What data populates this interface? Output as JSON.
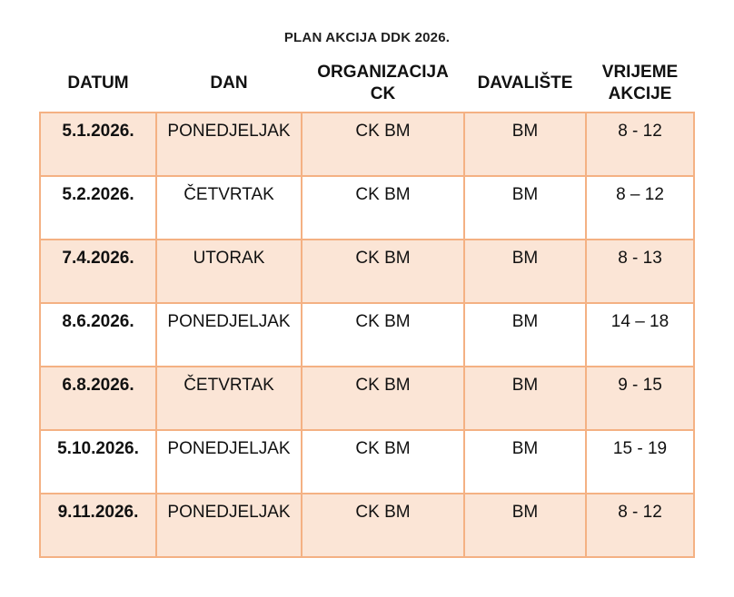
{
  "title": "PLAN AKCIJA DDK 2026.",
  "table": {
    "columns": [
      {
        "id": "datum",
        "label": "DATUM"
      },
      {
        "id": "dan",
        "label": "DAN"
      },
      {
        "id": "organizacija_ck",
        "label": "ORGANIZACIJA CK"
      },
      {
        "id": "davaliste",
        "label": "DAVALIŠTE"
      },
      {
        "id": "vrijeme_akcije",
        "label": "VRIJEME AKCIJE"
      }
    ],
    "rows": [
      {
        "datum": "5.1.2026.",
        "dan": "PONEDJELJAK",
        "organizacija_ck": "CK BM",
        "davaliste": "BM",
        "vrijeme_akcije": "8 - 12"
      },
      {
        "datum": "5.2.2026.",
        "dan": "ČETVRTAK",
        "organizacija_ck": "CK BM",
        "davaliste": "BM",
        "vrijeme_akcije": "8 – 12"
      },
      {
        "datum": "7.4.2026.",
        "dan": "UTORAK",
        "organizacija_ck": "CK BM",
        "davaliste": "BM",
        "vrijeme_akcije": "8 - 13"
      },
      {
        "datum": "8.6.2026.",
        "dan": "PONEDJELJAK",
        "organizacija_ck": "CK BM",
        "davaliste": "BM",
        "vrijeme_akcije": "14 – 18"
      },
      {
        "datum": "6.8.2026.",
        "dan": "ČETVRTAK",
        "organizacija_ck": "CK BM",
        "davaliste": "BM",
        "vrijeme_akcije": "9 - 15"
      },
      {
        "datum": "5.10.2026.",
        "dan": "PONEDJELJAK",
        "organizacija_ck": "CK BM",
        "davaliste": "BM",
        "vrijeme_akcije": "15 - 19"
      },
      {
        "datum": "9.11.2026.",
        "dan": "PONEDJELJAK",
        "organizacija_ck": "CK BM",
        "davaliste": "BM",
        "vrijeme_akcije": "8 - 12"
      }
    ]
  },
  "colors": {
    "row_fill": "#fbe5d6",
    "table_border": "#f4b183",
    "text": "#1a1a1a",
    "background": "#ffffff"
  }
}
